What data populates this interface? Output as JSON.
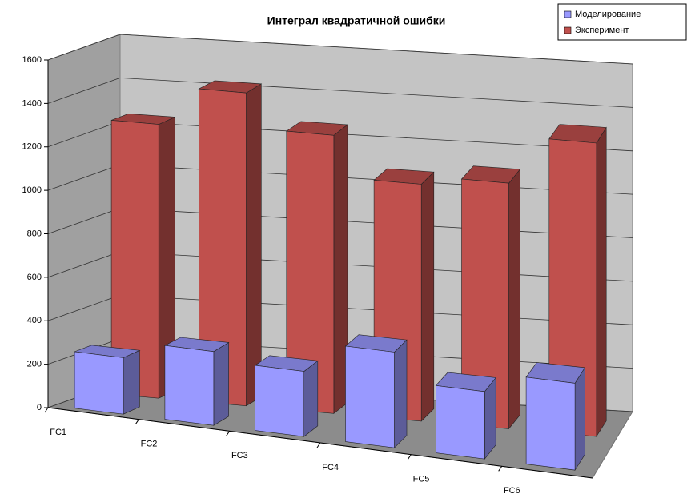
{
  "chart_data": {
    "type": "bar",
    "title": "Интеграл квадратичной ошибки",
    "categories": [
      "FC1",
      "FC2",
      "FC3",
      "FC4",
      "FC5",
      "FC6"
    ],
    "series": [
      {
        "name": "Моделирование",
        "color": "#9999ff",
        "values": [
          260,
          340,
          300,
          440,
          310,
          400
        ]
      },
      {
        "name": "Эксперимент",
        "color": "#c0504d",
        "values": [
          1260,
          1440,
          1280,
          1090,
          1130,
          1350
        ]
      }
    ],
    "ylim": [
      0,
      1600
    ],
    "yticks": [
      0,
      200,
      400,
      600,
      800,
      1000,
      1200,
      1400,
      1600
    ],
    "grid": true,
    "legend": "top-right"
  }
}
